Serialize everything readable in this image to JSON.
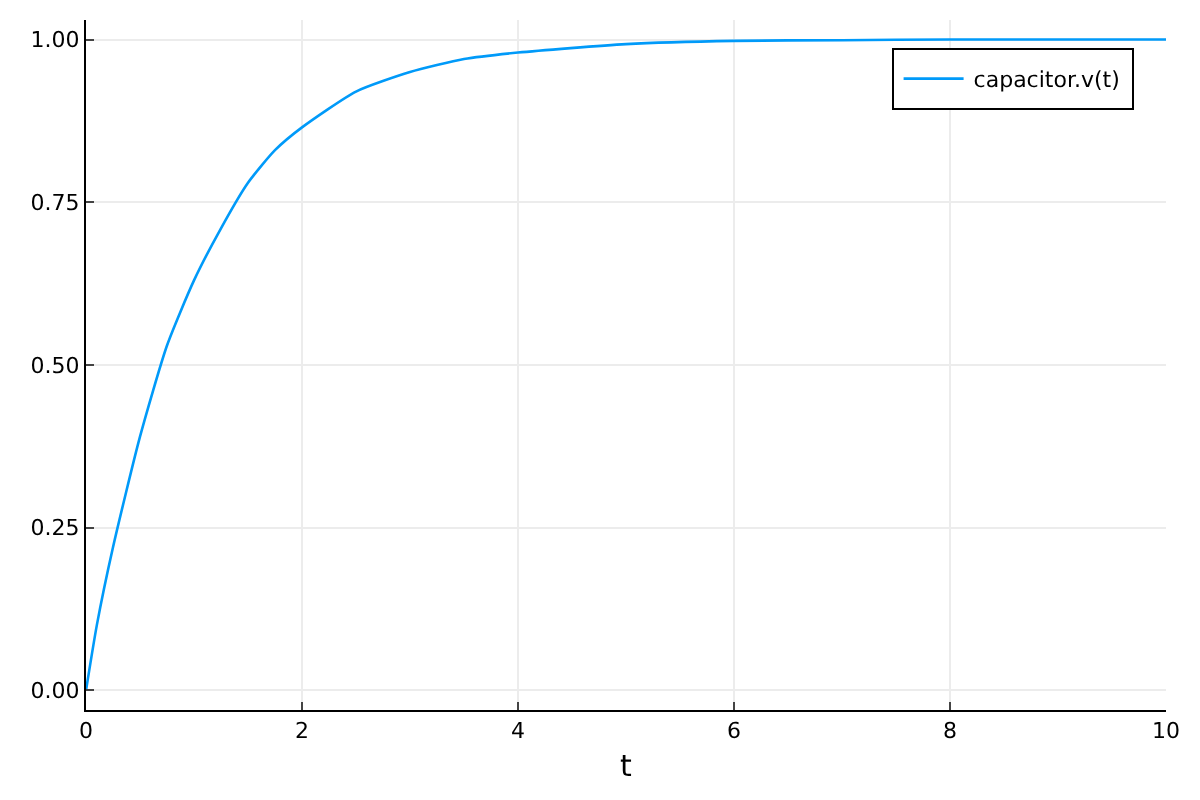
{
  "chart_data": {
    "type": "line",
    "xlabel": "t",
    "x": [
      0,
      0.1,
      0.25,
      0.5,
      0.75,
      1,
      1.25,
      1.5,
      1.75,
      2,
      2.5,
      3,
      3.5,
      4,
      5,
      6,
      7,
      8,
      9,
      10
    ],
    "series": [
      {
        "name": "capacitor.v(t)",
        "color": "#009af9",
        "values": [
          0,
          0.1,
          0.22,
          0.39,
          0.53,
          0.63,
          0.71,
          0.78,
          0.83,
          0.865,
          0.92,
          0.95,
          0.97,
          0.98,
          0.993,
          0.998,
          0.999,
          1.0,
          1.0,
          1.0
        ]
      }
    ],
    "xlim": [
      0,
      10
    ],
    "xticks": [
      0,
      2,
      4,
      6,
      8,
      10
    ],
    "ylim": [
      -0.03,
      1.03
    ],
    "yticks": [
      {
        "value": 0,
        "label": "0.00"
      },
      {
        "value": 0.25,
        "label": "0.25"
      },
      {
        "value": 0.5,
        "label": "0.50"
      },
      {
        "value": 0.75,
        "label": "0.75"
      },
      {
        "value": 1,
        "label": "1.00"
      }
    ],
    "grid": true,
    "legend": "top right",
    "marker": "none",
    "line_style": "solid"
  }
}
